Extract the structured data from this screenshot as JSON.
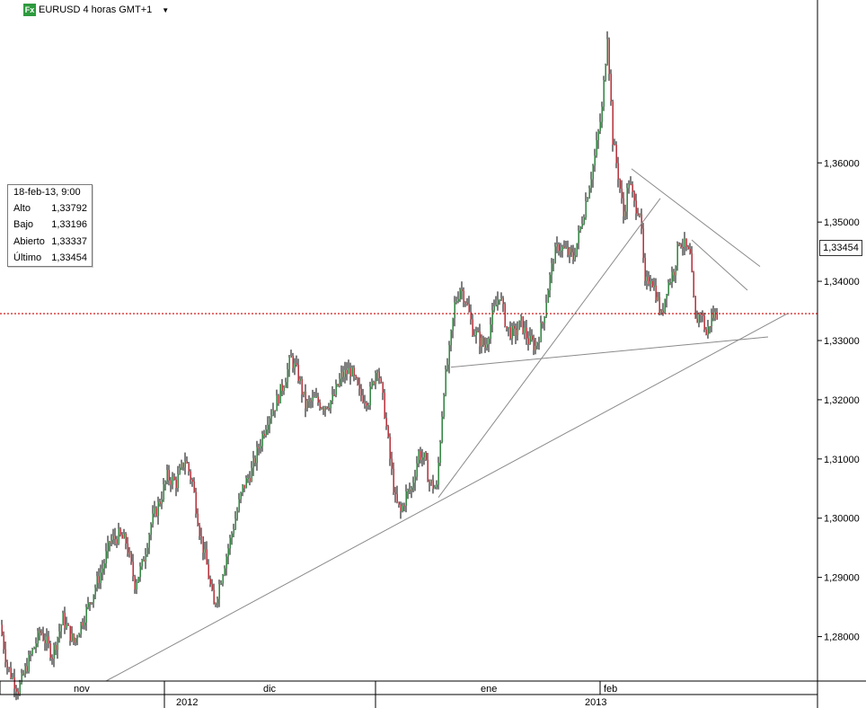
{
  "header": {
    "icon_label": "Fx",
    "title": "EURUSD 4 horas GMT+1"
  },
  "info_panel": {
    "date": "18-feb-13, 9:00",
    "rows": [
      {
        "label": "Alto",
        "value": "1,33792"
      },
      {
        "label": "Bajo",
        "value": "1,33196"
      },
      {
        "label": "Abierto",
        "value": "1,33337"
      },
      {
        "label": "Último",
        "value": "1,33454"
      }
    ]
  },
  "current_price_label": "1,33454",
  "chart_data": {
    "type": "candlestick",
    "title": "EURUSD 4 horas GMT+1",
    "ylim": [
      1.2725,
      1.3875
    ],
    "y_ticks": [
      "1,28000",
      "1,29000",
      "1,30000",
      "1,31000",
      "1,32000",
      "1,33000",
      "1,34000",
      "1,35000",
      "1,36000"
    ],
    "y_tick_values": [
      1.28,
      1.29,
      1.3,
      1.31,
      1.32,
      1.33,
      1.34,
      1.35,
      1.36
    ],
    "x_month_labels": [
      "nov",
      "dic",
      "ene",
      "feb"
    ],
    "x_year_labels": [
      "2012",
      "2013"
    ],
    "current_price": 1.33454,
    "grid": false,
    "close_path": [
      [
        0,
        1.282
      ],
      [
        8,
        1.275
      ],
      [
        20,
        1.271
      ],
      [
        32,
        1.276
      ],
      [
        45,
        1.281
      ],
      [
        58,
        1.277
      ],
      [
        70,
        1.283
      ],
      [
        82,
        1.279
      ],
      [
        95,
        1.284
      ],
      [
        105,
        1.288
      ],
      [
        115,
        1.292
      ],
      [
        122,
        1.296
      ],
      [
        132,
        1.297
      ],
      [
        140,
        1.296
      ],
      [
        150,
        1.289
      ],
      [
        158,
        1.292
      ],
      [
        168,
        1.299
      ],
      [
        178,
        1.303
      ],
      [
        186,
        1.307
      ],
      [
        196,
        1.306
      ],
      [
        206,
        1.31
      ],
      [
        214,
        1.306
      ],
      [
        222,
        1.298
      ],
      [
        230,
        1.292
      ],
      [
        238,
        1.285
      ],
      [
        246,
        1.29
      ],
      [
        254,
        1.295
      ],
      [
        262,
        1.3
      ],
      [
        270,
        1.305
      ],
      [
        280,
        1.308
      ],
      [
        290,
        1.313
      ],
      [
        298,
        1.317
      ],
      [
        306,
        1.319
      ],
      [
        316,
        1.323
      ],
      [
        324,
        1.327
      ],
      [
        332,
        1.324
      ],
      [
        340,
        1.319
      ],
      [
        350,
        1.32
      ],
      [
        360,
        1.319
      ],
      [
        370,
        1.32
      ],
      [
        380,
        1.324
      ],
      [
        390,
        1.325
      ],
      [
        400,
        1.321
      ],
      [
        410,
        1.32
      ],
      [
        420,
        1.326
      ],
      [
        428,
        1.318
      ],
      [
        434,
        1.31
      ],
      [
        440,
        1.303
      ],
      [
        446,
        1.301
      ],
      [
        452,
        1.304
      ],
      [
        458,
        1.305
      ],
      [
        466,
        1.311
      ],
      [
        472,
        1.31
      ],
      [
        478,
        1.306
      ],
      [
        486,
        1.305
      ],
      [
        494,
        1.322
      ],
      [
        500,
        1.328
      ],
      [
        506,
        1.336
      ],
      [
        512,
        1.339
      ],
      [
        518,
        1.337
      ],
      [
        526,
        1.332
      ],
      [
        534,
        1.33
      ],
      [
        540,
        1.329
      ],
      [
        548,
        1.334
      ],
      [
        556,
        1.338
      ],
      [
        564,
        1.332
      ],
      [
        572,
        1.331
      ],
      [
        580,
        1.333
      ],
      [
        588,
        1.33
      ],
      [
        596,
        1.329
      ],
      [
        604,
        1.333
      ],
      [
        610,
        1.339
      ],
      [
        616,
        1.344
      ],
      [
        622,
        1.346
      ],
      [
        630,
        1.345
      ],
      [
        638,
        1.344
      ],
      [
        646,
        1.349
      ],
      [
        654,
        1.355
      ],
      [
        662,
        1.361
      ],
      [
        670,
        1.369
      ],
      [
        676,
        1.382
      ],
      [
        682,
        1.364
      ],
      [
        688,
        1.358
      ],
      [
        694,
        1.351
      ],
      [
        700,
        1.357
      ],
      [
        706,
        1.353
      ],
      [
        712,
        1.352
      ],
      [
        718,
        1.339
      ],
      [
        724,
        1.341
      ],
      [
        730,
        1.338
      ],
      [
        736,
        1.334
      ],
      [
        742,
        1.339
      ],
      [
        750,
        1.342
      ],
      [
        756,
        1.347
      ],
      [
        762,
        1.346
      ],
      [
        768,
        1.344
      ],
      [
        774,
        1.333
      ],
      [
        780,
        1.335
      ],
      [
        786,
        1.331
      ],
      [
        792,
        1.334
      ],
      [
        798,
        1.3345
      ]
    ],
    "trend_lines": [
      {
        "from": [
          118,
          1.2725
        ],
        "to": [
          876,
          1.3345
        ]
      },
      {
        "from": [
          488,
          1.3035
        ],
        "to": [
          735,
          1.354
        ]
      },
      {
        "from": [
          502,
          1.3255
        ],
        "to": [
          855,
          1.3306
        ]
      },
      {
        "from": [
          703,
          1.359
        ],
        "to": [
          846,
          1.3425
        ]
      },
      {
        "from": [
          770,
          1.347
        ],
        "to": [
          832,
          1.3385
        ]
      }
    ]
  }
}
